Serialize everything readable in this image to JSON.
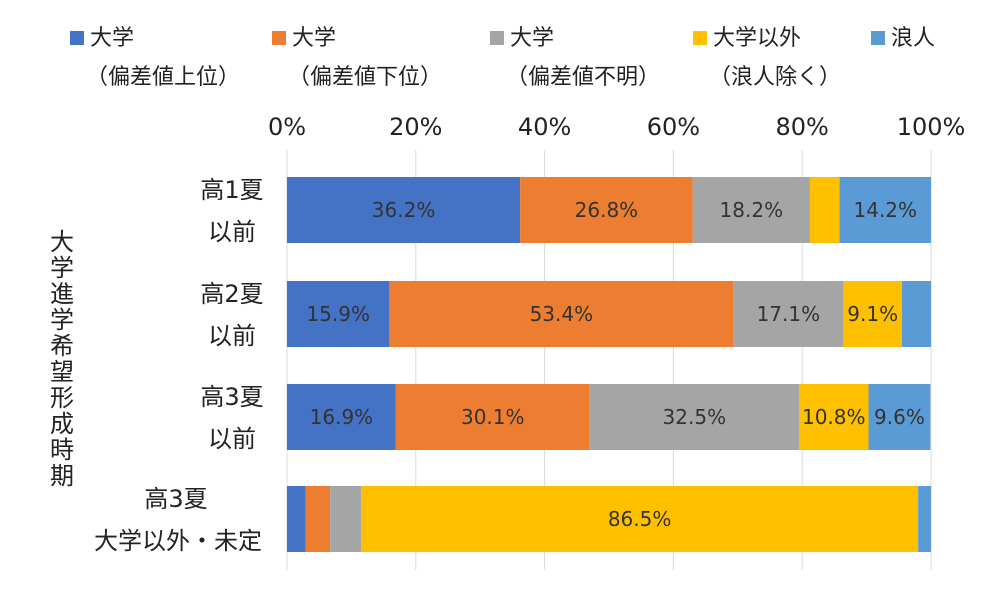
{
  "chart_data": {
    "type": "bar",
    "orientation": "horizontal",
    "stacked": true,
    "percent_scale": true,
    "ylabel": "大学進学希望形成時期",
    "xlim": [
      0,
      100
    ],
    "x_ticks": [
      "0%",
      "20%",
      "40%",
      "60%",
      "80%",
      "100%"
    ],
    "grid": true,
    "legend_position": "top",
    "categories": [
      [
        "高1夏",
        "以前"
      ],
      [
        "高2夏",
        "以前"
      ],
      [
        "高3夏",
        "以前"
      ],
      [
        "高3夏",
        "大学以外・未定"
      ]
    ],
    "series": [
      {
        "name": [
          "大学",
          "（偏差値上位）"
        ],
        "color": "#4472C4",
        "values": [
          36.2,
          15.9,
          16.9,
          2.9
        ],
        "labels": [
          "36.2%",
          "15.9%",
          "16.9%",
          ""
        ]
      },
      {
        "name": [
          "大学",
          "（偏差値下位）"
        ],
        "color": "#ED7D31",
        "values": [
          26.8,
          53.4,
          30.1,
          3.8
        ],
        "labels": [
          "26.8%",
          "53.4%",
          "30.1%",
          ""
        ]
      },
      {
        "name": [
          "大学",
          "（偏差値不明）"
        ],
        "color": "#A5A5A5",
        "values": [
          18.2,
          17.1,
          32.5,
          4.8
        ],
        "labels": [
          "18.2%",
          "17.1%",
          "32.5%",
          ""
        ]
      },
      {
        "name": [
          "大学以外",
          "（浪人除く）"
        ],
        "color": "#FFC000",
        "values": [
          4.6,
          9.1,
          10.8,
          86.5
        ],
        "labels": [
          "",
          "9.1%",
          "10.8%",
          "86.5%"
        ]
      },
      {
        "name": [
          "浪人",
          ""
        ],
        "color": "#5B9BD5",
        "values": [
          14.2,
          4.5,
          9.6,
          2.0
        ],
        "labels": [
          "14.2%",
          "",
          "9.6%",
          ""
        ]
      }
    ]
  }
}
